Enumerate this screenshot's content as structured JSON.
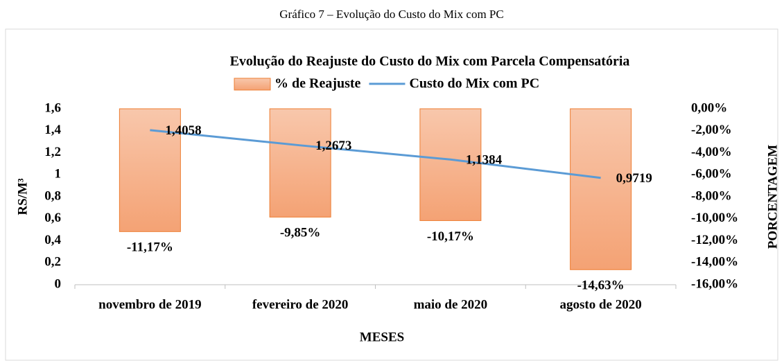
{
  "caption": "Gráfico 7 – Evolução do Custo do Mix com PC",
  "chart_data": {
    "type": "combo",
    "title": "Evolução do Reajuste do Custo do Mix com Parcela Compensatória",
    "xlabel": "MESES",
    "ylabel": "RS/M³",
    "y2label": "PORCENTAGEM",
    "categories": [
      "novembro de 2019",
      "fevereiro de 2020",
      "maio de 2020",
      "agosto de 2020"
    ],
    "series": [
      {
        "name": "% de Reajuste",
        "type": "bar",
        "axis": "y2",
        "color": "#f4a274",
        "edge_color": "#ed7d31",
        "values": [
          -11.17,
          -9.85,
          -10.17,
          -14.63
        ],
        "value_labels": [
          "-11,17%",
          "-9,85%",
          "-10,17%",
          "-14,63%"
        ]
      },
      {
        "name": "Custo do Mix com PC",
        "type": "line",
        "axis": "y",
        "color": "#5b9bd5",
        "values": [
          1.4058,
          1.2673,
          1.1384,
          0.9719
        ],
        "value_labels": [
          "1,4058",
          "1,2673",
          "1,1384",
          "0,9719"
        ]
      }
    ],
    "ylim": [
      0,
      1.6
    ],
    "yticks": [
      0,
      {
        "value": 0.2,
        "label": "0,2"
      },
      {
        "value": 0.4,
        "label": "0,4"
      },
      {
        "value": 0.6,
        "label": "0,6"
      },
      {
        "value": 0.8,
        "label": "0,8"
      },
      1,
      {
        "value": 1.2,
        "label": "1,2"
      },
      {
        "value": 1.4,
        "label": "1,4"
      },
      {
        "value": 1.6,
        "label": "1,6"
      }
    ],
    "y2lim": [
      -16,
      0
    ],
    "y2ticks": [
      {
        "value": -16,
        "label": "-16,00%"
      },
      {
        "value": -14,
        "label": "-14,00%"
      },
      {
        "value": -12,
        "label": "-12,00%"
      },
      {
        "value": -10,
        "label": "-10,00%"
      },
      {
        "value": -8,
        "label": "-8,00%"
      },
      {
        "value": -6,
        "label": "-6,00%"
      },
      {
        "value": -4,
        "label": "-4,00%"
      },
      {
        "value": -2,
        "label": "-2,00%"
      },
      {
        "value": 0,
        "label": "0,00%"
      }
    ],
    "legend": "top",
    "grid": false
  }
}
